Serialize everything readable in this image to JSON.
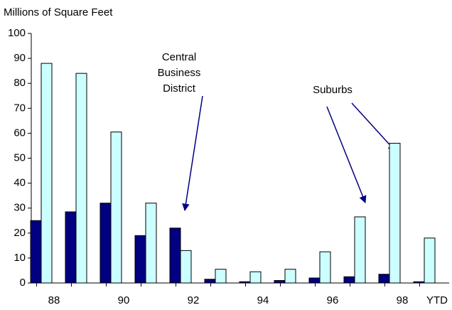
{
  "chart_data": {
    "type": "bar",
    "y_axis_label": "Millions of Square Feet",
    "categories": [
      "88",
      null,
      "90",
      null,
      "92",
      null,
      "94",
      null,
      "96",
      null,
      "98",
      "YTD"
    ],
    "series": [
      {
        "name": "Central Business District",
        "color": "#000080",
        "values": [
          25,
          28.5,
          32,
          19,
          22,
          1.5,
          0.5,
          1,
          2,
          2.5,
          3.5,
          0.5
        ]
      },
      {
        "name": "Suburbs",
        "color": "#ccffff",
        "values": [
          88,
          84,
          60.5,
          32,
          13,
          5.5,
          4.5,
          5.5,
          12.5,
          26.5,
          56,
          18
        ]
      }
    ],
    "ylim": [
      0,
      100
    ],
    "yticks": [
      0,
      10,
      20,
      30,
      40,
      50,
      60,
      70,
      80,
      90,
      100
    ],
    "grid": false
  }
}
